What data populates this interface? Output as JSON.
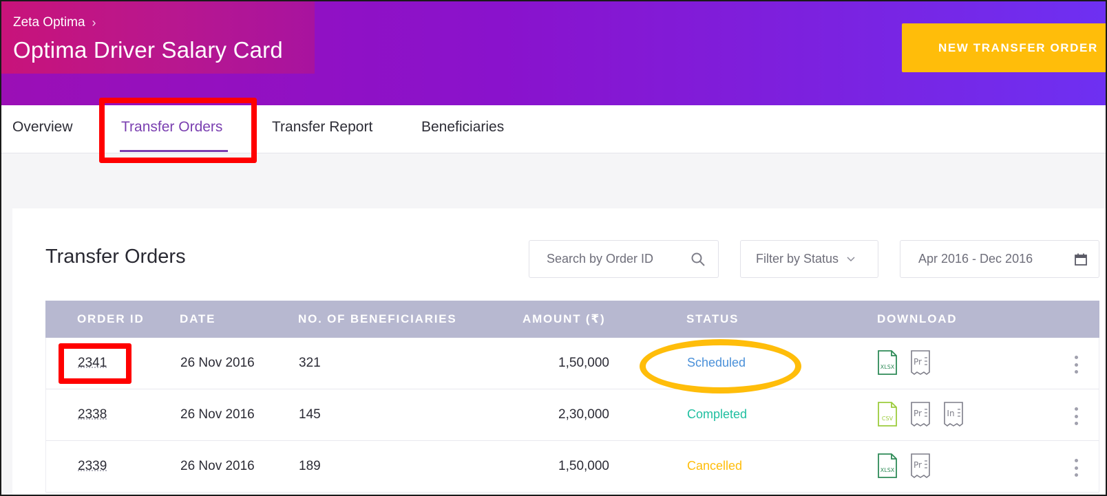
{
  "header": {
    "breadcrumb": "Zeta Optima",
    "title": "Optima Driver Salary Card",
    "new_button": "NEW TRANSFER ORDER"
  },
  "tabs": [
    {
      "label": "Overview",
      "active": false
    },
    {
      "label": "Transfer Orders",
      "active": true
    },
    {
      "label": "Transfer Report",
      "active": false
    },
    {
      "label": "Beneficiaries",
      "active": false
    }
  ],
  "section": {
    "title": "Transfer Orders",
    "search_placeholder": "Search by Order ID",
    "filter_label": "Filter by Status",
    "date_range": "Apr 2016 - Dec 2016"
  },
  "table": {
    "columns": [
      "ORDER ID",
      "DATE",
      "NO. OF BENEFICIARIES",
      "AMOUNT (₹)",
      "STATUS",
      "DOWNLOAD"
    ],
    "rows": [
      {
        "order_id": "2341",
        "date": "26 Nov 2016",
        "beneficiaries": "321",
        "amount": "1,50,000",
        "status": "Scheduled",
        "status_color": "#4a90d9",
        "downloads": [
          "XLSX",
          "Pr"
        ]
      },
      {
        "order_id": "2338",
        "date": "26 Nov 2016",
        "beneficiaries": "145",
        "amount": "2,30,000",
        "status": "Completed",
        "status_color": "#1fbfa0",
        "downloads": [
          "CSV",
          "Pr",
          "In"
        ]
      },
      {
        "order_id": "2339",
        "date": "26 Nov 2016",
        "beneficiaries": "189",
        "amount": "1,50,000",
        "status": "Cancelled",
        "status_color": "#ffbd0a",
        "downloads": [
          "XLSX",
          "Pr"
        ]
      }
    ]
  },
  "colors": {
    "accent": "#7a3fb0",
    "cta": "#ffbd0a",
    "highlight_red": "#ff0000"
  }
}
